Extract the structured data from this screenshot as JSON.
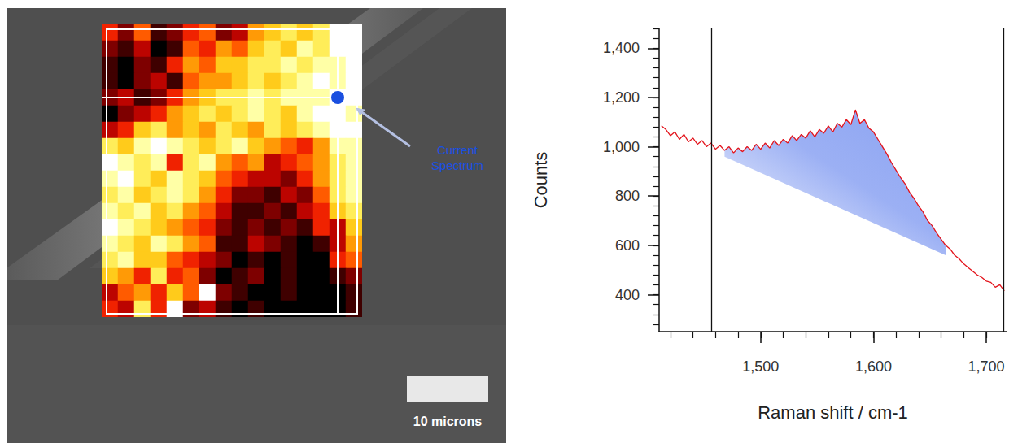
{
  "chart_data": [
    {
      "type": "heatmap",
      "cells": [
        [
          4,
          2,
          5,
          1,
          2,
          4,
          5,
          2,
          3,
          6,
          7,
          8,
          7,
          8,
          10,
          10
        ],
        [
          2,
          1,
          3,
          0,
          1,
          5,
          4,
          6,
          5,
          7,
          8,
          7,
          9,
          8,
          10,
          10
        ],
        [
          1,
          0,
          2,
          1,
          4,
          6,
          5,
          7,
          7,
          8,
          8,
          9,
          8,
          9,
          9,
          10
        ],
        [
          1,
          0,
          2,
          3,
          1,
          5,
          6,
          6,
          7,
          8,
          7,
          8,
          9,
          10,
          9,
          10
        ],
        [
          2,
          3,
          1,
          2,
          4,
          6,
          7,
          8,
          8,
          9,
          8,
          9,
          9,
          9,
          10,
          10
        ],
        [
          0,
          2,
          3,
          4,
          6,
          7,
          8,
          7,
          8,
          9,
          8,
          7,
          9,
          10,
          10,
          9
        ],
        [
          3,
          4,
          7,
          8,
          6,
          7,
          6,
          8,
          7,
          6,
          8,
          7,
          8,
          9,
          10,
          10
        ],
        [
          8,
          7,
          9,
          10,
          9,
          8,
          7,
          8,
          9,
          7,
          6,
          5,
          4,
          6,
          9,
          9
        ],
        [
          10,
          9,
          8,
          9,
          4,
          8,
          9,
          6,
          5,
          6,
          3,
          4,
          5,
          6,
          8,
          9
        ],
        [
          9,
          10,
          8,
          7,
          9,
          8,
          7,
          5,
          4,
          3,
          3,
          2,
          4,
          6,
          8,
          9
        ],
        [
          8,
          9,
          7,
          8,
          9,
          8,
          6,
          4,
          2,
          2,
          1,
          3,
          2,
          5,
          8,
          9
        ],
        [
          9,
          8,
          9,
          7,
          8,
          6,
          5,
          3,
          1,
          1,
          2,
          1,
          3,
          4,
          7,
          8
        ],
        [
          10,
          9,
          8,
          7,
          6,
          5,
          4,
          2,
          1,
          2,
          1,
          2,
          1,
          4,
          3,
          7
        ],
        [
          9,
          8,
          7,
          9,
          8,
          6,
          5,
          1,
          1,
          3,
          2,
          1,
          0,
          1,
          3,
          6
        ],
        [
          8,
          9,
          7,
          7,
          5,
          4,
          3,
          2,
          0,
          1,
          0,
          1,
          0,
          0,
          4,
          5
        ],
        [
          7,
          6,
          4,
          8,
          4,
          5,
          2,
          0,
          1,
          2,
          0,
          1,
          0,
          0,
          1,
          2
        ],
        [
          3,
          5,
          6,
          4,
          7,
          5,
          10,
          2,
          1,
          0,
          0,
          1,
          0,
          0,
          0,
          1
        ],
        [
          4,
          3,
          8,
          4,
          10,
          2,
          3,
          1,
          0,
          1,
          0,
          0,
          0,
          0,
          0,
          1
        ]
      ],
      "value_range": [
        0,
        10
      ],
      "pixel_size": 2,
      "tick_labels": false,
      "current_spectrum": {
        "row": 4,
        "col": 14,
        "label": "Current Spectrum",
        "color": "#1a4fe0"
      },
      "scale_bar": {
        "length": 10,
        "label": "10 microns"
      }
    },
    {
      "type": "line",
      "x": [
        1412,
        1416,
        1420,
        1424,
        1428,
        1432,
        1436,
        1440,
        1444,
        1448,
        1452,
        1456,
        1460,
        1464,
        1468,
        1472,
        1476,
        1480,
        1484,
        1488,
        1492,
        1496,
        1500,
        1504,
        1508,
        1512,
        1516,
        1520,
        1524,
        1528,
        1532,
        1536,
        1540,
        1544,
        1548,
        1552,
        1556,
        1560,
        1564,
        1568,
        1572,
        1576,
        1580,
        1584,
        1588,
        1592,
        1596,
        1600,
        1604,
        1608,
        1612,
        1616,
        1620,
        1624,
        1628,
        1632,
        1636,
        1640,
        1644,
        1648,
        1652,
        1656,
        1660,
        1664,
        1668,
        1672,
        1676,
        1680,
        1684,
        1688,
        1692,
        1696,
        1700,
        1704,
        1708,
        1712,
        1716
      ],
      "values": [
        1085,
        1070,
        1045,
        1060,
        1030,
        1050,
        1020,
        1035,
        1010,
        1025,
        1000,
        1015,
        990,
        1005,
        985,
        1000,
        975,
        995,
        980,
        1000,
        985,
        1010,
        990,
        1015,
        995,
        1025,
        1005,
        1030,
        1015,
        1045,
        1025,
        1050,
        1035,
        1065,
        1040,
        1070,
        1055,
        1085,
        1060,
        1095,
        1080,
        1110,
        1090,
        1150,
        1095,
        1110,
        1075,
        1060,
        1030,
        1000,
        970,
        935,
        905,
        875,
        850,
        815,
        790,
        760,
        735,
        700,
        680,
        650,
        625,
        600,
        585,
        560,
        545,
        525,
        510,
        495,
        480,
        470,
        455,
        450,
        430,
        440,
        415
      ],
      "color": "#e3141c",
      "xlabel": "Raman shift / cm-1",
      "ylabel": "Counts",
      "xlim": [
        1410,
        1718
      ],
      "xticks": [
        1500,
        1600,
        1700
      ],
      "ylim": [
        250,
        1480
      ],
      "yticks": [
        400,
        600,
        800,
        1000,
        1200,
        1400
      ],
      "range_markers": [
        1456,
        1715
      ],
      "baseline": {
        "x": [
          1468,
          1664
        ],
        "y": [
          960,
          560
        ],
        "color": "#8aa2f2"
      },
      "grid": false
    }
  ]
}
